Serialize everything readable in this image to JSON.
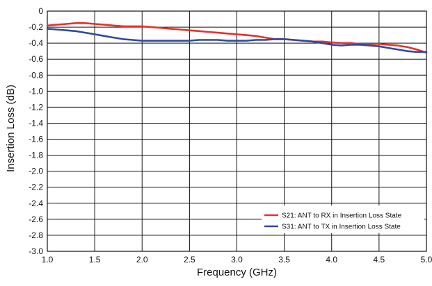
{
  "chart_data": {
    "type": "line",
    "title": "",
    "xlabel": "Frequency (GHz)",
    "ylabel": "Insertion Loss (dB)",
    "xlim": [
      1.0,
      5.0
    ],
    "ylim": [
      -3.0,
      0
    ],
    "x_ticks": [
      "1.0",
      "1.5",
      "2.0",
      "2.5",
      "3.0",
      "3.5",
      "4.0",
      "4.5",
      "5.0"
    ],
    "y_ticks": [
      "0",
      "-0.2",
      "-0.4",
      "-0.6",
      "-0.8",
      "-1.0",
      "-1.2",
      "-1.4",
      "-1.6",
      "-1.8",
      "-2.0",
      "-2.2",
      "-2.4",
      "-2.6",
      "-2.8",
      "-3.0"
    ],
    "grid": true,
    "legend_position": "bottom-right",
    "series": [
      {
        "name": "S21: ANT to RX in Insertion Loss State",
        "color": "#e8302a",
        "x": [
          1.0,
          1.1,
          1.2,
          1.3,
          1.4,
          1.5,
          1.6,
          1.7,
          1.8,
          1.9,
          2.0,
          2.1,
          2.2,
          2.3,
          2.4,
          2.5,
          2.6,
          2.7,
          2.8,
          2.9,
          3.0,
          3.1,
          3.2,
          3.3,
          3.4,
          3.5,
          3.6,
          3.7,
          3.8,
          3.9,
          4.0,
          4.1,
          4.2,
          4.3,
          4.4,
          4.5,
          4.6,
          4.7,
          4.8,
          4.9,
          5.0
        ],
        "y": [
          -0.18,
          -0.17,
          -0.16,
          -0.15,
          -0.15,
          -0.16,
          -0.17,
          -0.18,
          -0.19,
          -0.19,
          -0.19,
          -0.2,
          -0.21,
          -0.22,
          -0.23,
          -0.24,
          -0.25,
          -0.26,
          -0.27,
          -0.28,
          -0.29,
          -0.3,
          -0.31,
          -0.33,
          -0.35,
          -0.35,
          -0.36,
          -0.37,
          -0.38,
          -0.38,
          -0.39,
          -0.4,
          -0.4,
          -0.41,
          -0.41,
          -0.41,
          -0.42,
          -0.43,
          -0.45,
          -0.48,
          -0.52
        ]
      },
      {
        "name": "S31: ANT to TX in Insertion Loss State",
        "color": "#2e4a9e",
        "x": [
          1.0,
          1.1,
          1.2,
          1.3,
          1.4,
          1.5,
          1.6,
          1.7,
          1.8,
          1.9,
          2.0,
          2.1,
          2.2,
          2.3,
          2.4,
          2.5,
          2.6,
          2.7,
          2.8,
          2.9,
          3.0,
          3.1,
          3.2,
          3.3,
          3.4,
          3.5,
          3.6,
          3.7,
          3.8,
          3.9,
          4.0,
          4.1,
          4.2,
          4.3,
          4.4,
          4.5,
          4.6,
          4.7,
          4.8,
          4.9,
          5.0
        ],
        "y": [
          -0.22,
          -0.23,
          -0.24,
          -0.25,
          -0.27,
          -0.29,
          -0.31,
          -0.33,
          -0.35,
          -0.36,
          -0.37,
          -0.37,
          -0.37,
          -0.37,
          -0.37,
          -0.37,
          -0.36,
          -0.36,
          -0.36,
          -0.37,
          -0.37,
          -0.37,
          -0.36,
          -0.36,
          -0.35,
          -0.35,
          -0.36,
          -0.37,
          -0.38,
          -0.4,
          -0.42,
          -0.43,
          -0.42,
          -0.42,
          -0.43,
          -0.44,
          -0.46,
          -0.48,
          -0.5,
          -0.51,
          -0.51
        ]
      }
    ]
  }
}
